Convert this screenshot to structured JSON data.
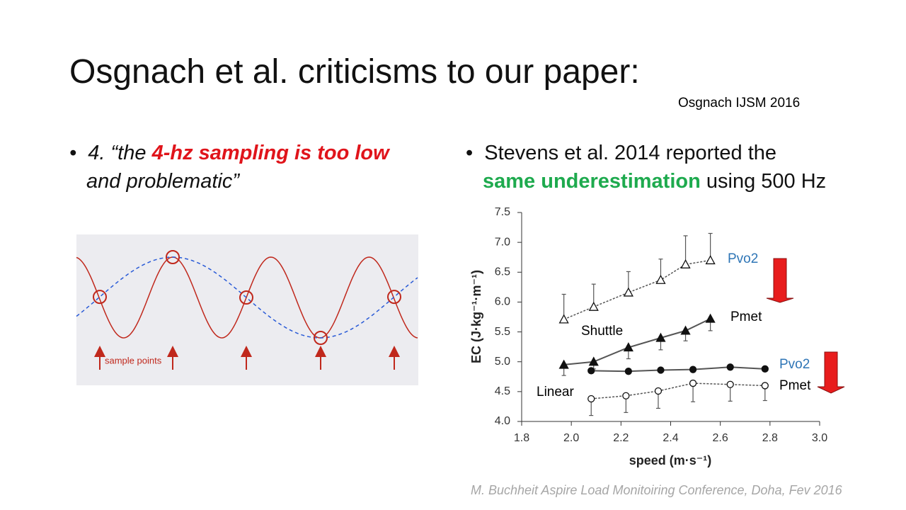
{
  "header": {
    "title": "Osgnach et al. criticisms to our paper:",
    "citation": "Osgnach IJSM 2016"
  },
  "left_bullet": {
    "parts": [
      "4. “the ",
      "4-hz sampling is too low",
      "and problematic”"
    ]
  },
  "right_bullet": {
    "parts": [
      "Stevens et al. 2014 reported the",
      "same underestimation",
      "using 500 Hz"
    ]
  },
  "sampling_figure": {
    "label": "sample points"
  },
  "chart_data": {
    "type": "line",
    "x_label": "speed (m·s⁻¹)",
    "y_label": "EC (J·kg⁻¹·m⁻¹)",
    "xlim": [
      1.8,
      3.0
    ],
    "xticks": [
      1.8,
      {
        "value": 2,
        "label": "2.0"
      },
      2.2,
      2.4,
      2.6,
      2.8,
      {
        "value": 3,
        "label": "3.0"
      }
    ],
    "ylim": [
      4.0,
      7.5
    ],
    "yticks": [
      {
        "value": 4,
        "label": "4.0"
      },
      4.5,
      {
        "value": 5,
        "label": "5.0"
      },
      5.5,
      {
        "value": 6,
        "label": "6.0"
      },
      6.5,
      {
        "value": 7,
        "label": "7.0"
      },
      7.5
    ],
    "annotations": [
      "Shuttle",
      "Linear"
    ],
    "series": [
      {
        "name": "Pvo2",
        "color": "#555555",
        "marker": "triangle",
        "filled": false,
        "dashed": true,
        "error_direction": "up",
        "x": [
          1.97,
          2.09,
          2.23,
          2.36,
          2.46,
          2.56
        ],
        "values": [
          5.71,
          5.92,
          6.16,
          6.37,
          6.63,
          6.7
        ],
        "errors": [
          0.42,
          0.38,
          0.35,
          0.35,
          0.48,
          0.45
        ]
      },
      {
        "name": "Pmet",
        "color": "#555555",
        "marker": "triangle",
        "filled": true,
        "dashed": false,
        "error_direction": "down",
        "x": [
          1.97,
          2.09,
          2.23,
          2.36,
          2.46,
          2.56
        ],
        "values": [
          4.95,
          5.0,
          5.24,
          5.4,
          5.52,
          5.72
        ],
        "errors": [
          0.18,
          0.12,
          0.19,
          0.2,
          0.17,
          0.2
        ]
      },
      {
        "name": "Pvo2",
        "color": "#555555",
        "marker": "circle",
        "filled": true,
        "dashed": false,
        "x": [
          2.08,
          2.23,
          2.36,
          2.49,
          2.64,
          2.78
        ],
        "values": [
          4.85,
          4.84,
          4.86,
          4.87,
          4.91,
          4.88
        ]
      },
      {
        "name": "Pmet",
        "color": "#555555",
        "marker": "circle",
        "filled": false,
        "dashed": true,
        "error_direction": "down",
        "x": [
          2.08,
          2.22,
          2.35,
          2.49,
          2.64,
          2.78
        ],
        "values": [
          4.38,
          4.43,
          4.51,
          4.64,
          4.62,
          4.6
        ],
        "errors": [
          0.28,
          0.28,
          0.29,
          0.31,
          0.28,
          0.25
        ]
      }
    ]
  },
  "footer": {
    "text": "M. Buchheit Aspire Load Monitoiring Conference, Doha, Fev 2016"
  }
}
